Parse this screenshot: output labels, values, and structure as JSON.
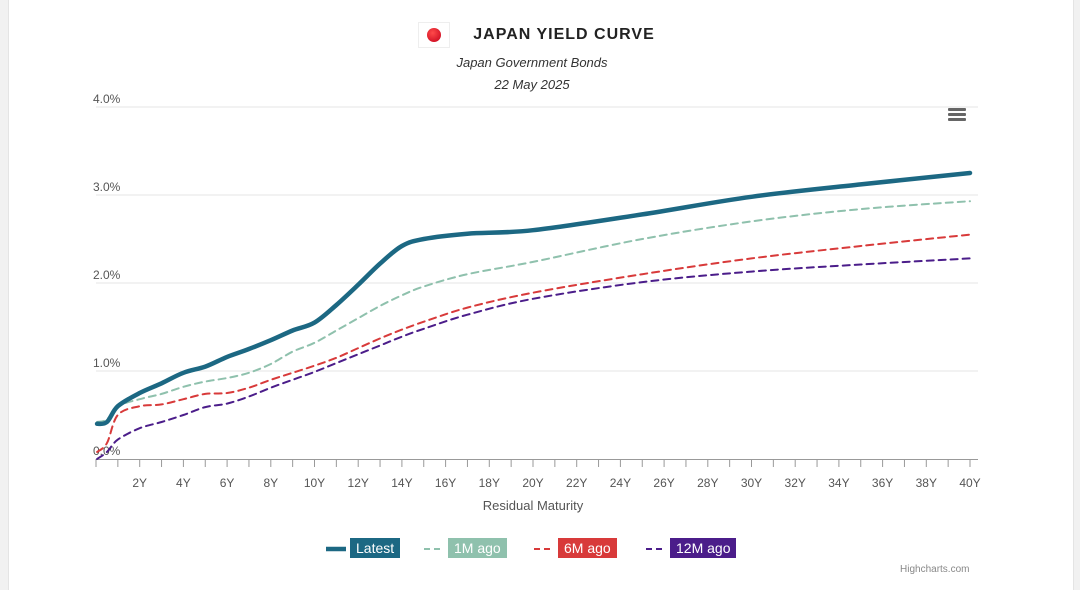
{
  "chart_data": {
    "type": "line",
    "title": "JAPAN YIELD CURVE",
    "subtitle": "Japan Government Bonds",
    "date": "22 May 2025",
    "xlabel": "Residual Maturity",
    "ylabel": "",
    "xlim": [
      0,
      40
    ],
    "ylim": [
      0,
      4
    ],
    "y_ticks": [
      "0.0%",
      "1.0%",
      "2.0%",
      "3.0%",
      "4.0%"
    ],
    "y_tick_values": [
      0,
      1,
      2,
      3,
      4
    ],
    "x_ticks": [
      "2Y",
      "4Y",
      "6Y",
      "8Y",
      "10Y",
      "12Y",
      "14Y",
      "16Y",
      "18Y",
      "20Y",
      "22Y",
      "24Y",
      "26Y",
      "28Y",
      "30Y",
      "32Y",
      "34Y",
      "36Y",
      "38Y",
      "40Y"
    ],
    "x_tick_values": [
      2,
      4,
      6,
      8,
      10,
      12,
      14,
      16,
      18,
      20,
      22,
      24,
      26,
      28,
      30,
      32,
      34,
      36,
      38,
      40
    ],
    "x": [
      0.05,
      0.5,
      1,
      2,
      3,
      4,
      5,
      6,
      7,
      8,
      9,
      10,
      11,
      12,
      13,
      14,
      15,
      17,
      20,
      25,
      30,
      35,
      40
    ],
    "series": [
      {
        "name": "Latest",
        "color": "#1c6883",
        "dash": "solid",
        "values": [
          0.4,
          0.42,
          0.6,
          0.75,
          0.86,
          0.98,
          1.05,
          1.16,
          1.25,
          1.35,
          1.46,
          1.55,
          1.75,
          1.98,
          2.22,
          2.42,
          2.5,
          2.56,
          2.6,
          2.78,
          2.98,
          3.12,
          3.25
        ]
      },
      {
        "name": "1M ago",
        "color": "#8fc1ad",
        "dash": "dash",
        "values": [
          0.42,
          0.45,
          0.6,
          0.68,
          0.74,
          0.82,
          0.88,
          0.92,
          0.98,
          1.08,
          1.22,
          1.32,
          1.46,
          1.6,
          1.74,
          1.86,
          1.96,
          2.1,
          2.24,
          2.5,
          2.7,
          2.84,
          2.93
        ]
      },
      {
        "name": "6M ago",
        "color": "#d83a3a",
        "dash": "dash",
        "values": [
          0.08,
          0.18,
          0.5,
          0.6,
          0.62,
          0.68,
          0.74,
          0.75,
          0.81,
          0.9,
          0.98,
          1.06,
          1.15,
          1.26,
          1.37,
          1.47,
          1.56,
          1.72,
          1.89,
          2.1,
          2.28,
          2.42,
          2.55
        ]
      },
      {
        "name": "12M ago",
        "color": "#4b1d8a",
        "dash": "dash",
        "values": [
          0.0,
          0.08,
          0.22,
          0.35,
          0.42,
          0.5,
          0.59,
          0.63,
          0.71,
          0.81,
          0.9,
          0.99,
          1.09,
          1.19,
          1.29,
          1.39,
          1.48,
          1.64,
          1.82,
          2.01,
          2.13,
          2.21,
          2.28
        ]
      }
    ],
    "grid": true,
    "legend_position": "bottom"
  },
  "ui": {
    "flag_icon": "japan-flag-icon",
    "menu_icon": "hamburger-menu-icon",
    "credits": "Highcharts.com"
  }
}
